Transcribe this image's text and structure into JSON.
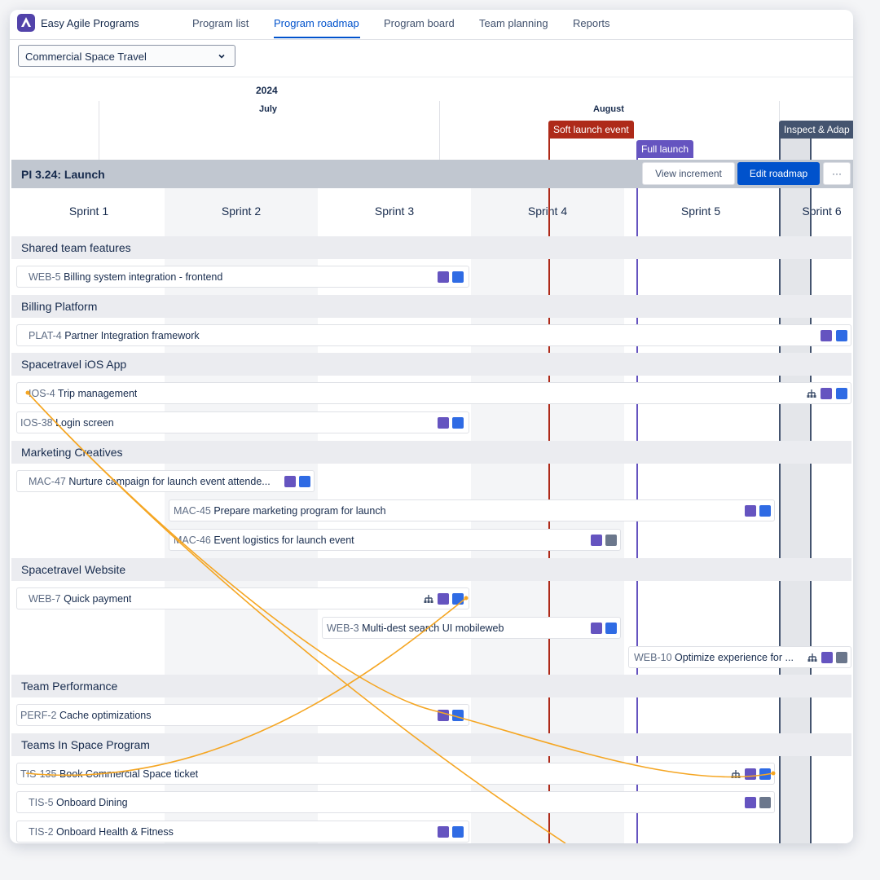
{
  "app": {
    "title": "Easy Agile Programs"
  },
  "nav": [
    {
      "label": "Program list"
    },
    {
      "label": "Program roadmap",
      "active": true
    },
    {
      "label": "Program board"
    },
    {
      "label": "Team planning"
    },
    {
      "label": "Reports"
    }
  ],
  "program_select": {
    "value": "Commercial Space Travel"
  },
  "timeline": {
    "year": "2024",
    "months": [
      "July",
      "August"
    ],
    "markers": [
      {
        "label": "Soft launch event",
        "color": "#ae2a19"
      },
      {
        "label": "Full launch",
        "color": "#6554c0"
      },
      {
        "label": "Inspect & Adap",
        "color": "#44546f"
      }
    ]
  },
  "increment": {
    "title": "PI 3.24: Launch",
    "view_label": "View increment",
    "edit_label": "Edit roadmap",
    "more_label": "···",
    "sprints": [
      "Sprint 1",
      "Sprint 2",
      "Sprint 3",
      "Sprint 4",
      "Sprint 5",
      "Sprint 6"
    ]
  },
  "teams": [
    {
      "name": "Shared team features",
      "items": [
        {
          "key": "WEB-5",
          "name": "Billing system integration - frontend",
          "icons": [
            "bolt",
            "blue"
          ]
        }
      ]
    },
    {
      "name": "Billing Platform",
      "items": [
        {
          "key": "PLAT-4",
          "name": "Partner Integration framework",
          "icons": [
            "bolt",
            "blue"
          ]
        }
      ]
    },
    {
      "name": "Spacetravel iOS App",
      "items": [
        {
          "key": "IOS-4",
          "name": "Trip management",
          "icons": [
            "tree",
            "bolt",
            "blue"
          ]
        },
        {
          "key": "IOS-38",
          "name": "Login screen",
          "icons": [
            "bolt",
            "blue"
          ]
        }
      ]
    },
    {
      "name": "Marketing Creatives",
      "items": [
        {
          "key": "MAC-47",
          "name": "Nurture campaign for launch event attende...",
          "icons": [
            "bolt",
            "blue"
          ]
        },
        {
          "key": "MAC-45",
          "name": "Prepare marketing program for launch",
          "icons": [
            "bolt",
            "blue"
          ]
        },
        {
          "key": "MAC-46",
          "name": "Event logistics for launch event",
          "icons": [
            "bolt",
            "grey"
          ]
        }
      ]
    },
    {
      "name": "Spacetravel Website",
      "items": [
        {
          "key": "WEB-7",
          "name": "Quick payment",
          "icons": [
            "tree",
            "bolt",
            "blue"
          ]
        },
        {
          "key": "WEB-3",
          "name": "Multi-dest search UI mobileweb",
          "icons": [
            "bolt",
            "blue"
          ]
        },
        {
          "key": "WEB-10",
          "name": "Optimize experience for ...",
          "icons": [
            "tree",
            "bolt",
            "grey"
          ]
        }
      ]
    },
    {
      "name": "Team Performance",
      "items": [
        {
          "key": "PERF-2",
          "name": "Cache optimizations",
          "icons": [
            "bolt",
            "blue"
          ]
        }
      ]
    },
    {
      "name": "Teams In Space Program",
      "items": [
        {
          "key": "TIS-135",
          "name": "Book Commercial Space ticket",
          "icons": [
            "tree",
            "bolt",
            "blue"
          ]
        },
        {
          "key": "TIS-5",
          "name": "Onboard Dining",
          "icons": [
            "bolt",
            "grey"
          ]
        },
        {
          "key": "TIS-2",
          "name": "Onboard Health & Fitness",
          "icons": [
            "bolt",
            "blue"
          ]
        }
      ]
    }
  ]
}
